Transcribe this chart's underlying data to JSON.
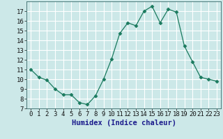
{
  "x": [
    0,
    1,
    2,
    3,
    4,
    5,
    6,
    7,
    8,
    9,
    10,
    11,
    12,
    13,
    14,
    15,
    16,
    17,
    18,
    19,
    20,
    21,
    22,
    23
  ],
  "y": [
    11,
    10.2,
    9.9,
    9.0,
    8.4,
    8.4,
    7.6,
    7.4,
    8.3,
    10.0,
    12.1,
    14.7,
    15.8,
    15.5,
    17.0,
    17.5,
    15.8,
    17.2,
    16.9,
    13.4,
    11.8,
    10.2,
    10.0,
    9.8
  ],
  "line_color": "#1a7a5e",
  "marker": "D",
  "marker_size": 2.5,
  "bg_color": "#cce8e8",
  "grid_color": "#ffffff",
  "xlabel": "Humidex (Indice chaleur)",
  "xlim": [
    -0.5,
    23.5
  ],
  "ylim": [
    7,
    18
  ],
  "yticks": [
    7,
    8,
    9,
    10,
    11,
    12,
    13,
    14,
    15,
    16,
    17
  ],
  "xticks": [
    0,
    1,
    2,
    3,
    4,
    5,
    6,
    7,
    8,
    9,
    10,
    11,
    12,
    13,
    14,
    15,
    16,
    17,
    18,
    19,
    20,
    21,
    22,
    23
  ],
  "xtick_labels": [
    "0",
    "1",
    "2",
    "3",
    "4",
    "5",
    "6",
    "7",
    "8",
    "9",
    "10",
    "11",
    "12",
    "13",
    "14",
    "15",
    "16",
    "17",
    "18",
    "19",
    "20",
    "21",
    "22",
    "23"
  ],
  "xlabel_color": "#1a1a8c",
  "axis_label_fontsize": 7.5,
  "tick_fontsize": 6.5
}
